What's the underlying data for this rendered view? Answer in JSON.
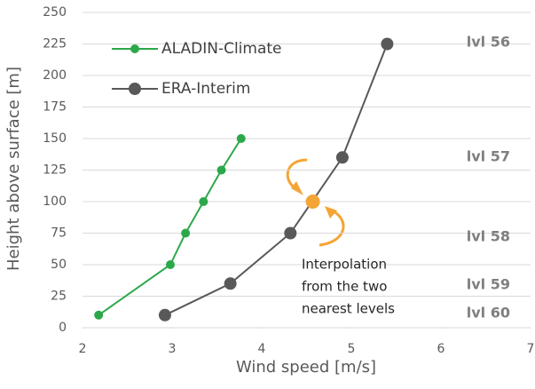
{
  "chart_data": {
    "type": "line",
    "x_label": "Wind speed [m/s]",
    "y_label": "Height above surface [m]",
    "xlim": [
      2,
      7
    ],
    "xticks": [
      2,
      3,
      4,
      5,
      6,
      7
    ],
    "ylim": [
      0,
      250
    ],
    "yticks": [
      0,
      25,
      50,
      75,
      100,
      125,
      150,
      175,
      200,
      225,
      250
    ],
    "grid": true,
    "legend": "upper left",
    "series": [
      {
        "name": "ALADIN-Climate",
        "color": "#2ca84a",
        "x": [
          2.18,
          2.98,
          3.15,
          3.35,
          3.55,
          3.77
        ],
        "values": [
          10,
          50,
          75,
          100,
          125,
          150
        ]
      },
      {
        "name": "ERA-Interim",
        "color": "#595959",
        "x": [
          2.92,
          3.65,
          4.32,
          4.9,
          5.4
        ],
        "values": [
          10,
          35,
          75,
          135,
          225
        ]
      }
    ],
    "interpolated_point": {
      "x": 4.57,
      "y": 100,
      "color": "#f4a535"
    },
    "annotation": [
      "Interpolation",
      "from the two",
      "nearest levels"
    ],
    "levels": [
      "lvl 56",
      "lvl 57",
      "lvl 58",
      "lvl 59",
      "lvl 60"
    ]
  }
}
